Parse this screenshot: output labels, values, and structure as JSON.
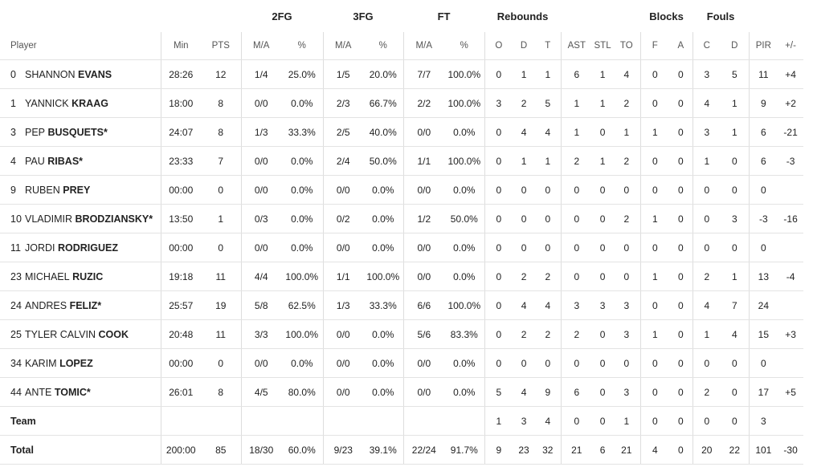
{
  "groups": [
    "2FG",
    "3FG",
    "FT",
    "Rebounds",
    "Blocks",
    "Fouls"
  ],
  "columns": [
    "Player",
    "Min",
    "PTS",
    "M/A",
    "%",
    "M/A",
    "%",
    "M/A",
    "%",
    "O",
    "D",
    "T",
    "AST",
    "STL",
    "TO",
    "F",
    "A",
    "C",
    "D",
    "PIR",
    "+/-"
  ],
  "rows": [
    {
      "number": "0",
      "first": "SHANNON",
      "last": "EVANS",
      "stats": [
        "28:26",
        "12",
        "1/4",
        "25.0%",
        "1/5",
        "20.0%",
        "7/7",
        "100.0%",
        "0",
        "1",
        "1",
        "6",
        "1",
        "4",
        "0",
        "0",
        "3",
        "5",
        "11",
        "+4"
      ]
    },
    {
      "number": "1",
      "first": "YANNICK",
      "last": "KRAAG",
      "stats": [
        "18:00",
        "8",
        "0/0",
        "0.0%",
        "2/3",
        "66.7%",
        "2/2",
        "100.0%",
        "3",
        "2",
        "5",
        "1",
        "1",
        "2",
        "0",
        "0",
        "4",
        "1",
        "9",
        "+2"
      ]
    },
    {
      "number": "3",
      "first": "PEP",
      "last": "BUSQUETS*",
      "stats": [
        "24:07",
        "8",
        "1/3",
        "33.3%",
        "2/5",
        "40.0%",
        "0/0",
        "0.0%",
        "0",
        "4",
        "4",
        "1",
        "0",
        "1",
        "1",
        "0",
        "3",
        "1",
        "6",
        "-21"
      ]
    },
    {
      "number": "4",
      "first": "PAU",
      "last": "RIBAS*",
      "stats": [
        "23:33",
        "7",
        "0/0",
        "0.0%",
        "2/4",
        "50.0%",
        "1/1",
        "100.0%",
        "0",
        "1",
        "1",
        "2",
        "1",
        "2",
        "0",
        "0",
        "1",
        "0",
        "6",
        "-3"
      ]
    },
    {
      "number": "9",
      "first": "RUBEN",
      "last": "PREY",
      "stats": [
        "00:00",
        "0",
        "0/0",
        "0.0%",
        "0/0",
        "0.0%",
        "0/0",
        "0.0%",
        "0",
        "0",
        "0",
        "0",
        "0",
        "0",
        "0",
        "0",
        "0",
        "0",
        "0",
        null
      ]
    },
    {
      "number": "10",
      "first": "VLADIMIR",
      "last": "BRODZIANSKY*",
      "stats": [
        "13:50",
        "1",
        "0/3",
        "0.0%",
        "0/2",
        "0.0%",
        "1/2",
        "50.0%",
        "0",
        "0",
        "0",
        "0",
        "0",
        "2",
        "1",
        "0",
        "0",
        "3",
        "-3",
        "-16"
      ]
    },
    {
      "number": "11",
      "first": "JORDI",
      "last": "RODRIGUEZ",
      "stats": [
        "00:00",
        "0",
        "0/0",
        "0.0%",
        "0/0",
        "0.0%",
        "0/0",
        "0.0%",
        "0",
        "0",
        "0",
        "0",
        "0",
        "0",
        "0",
        "0",
        "0",
        "0",
        "0",
        null
      ]
    },
    {
      "number": "23",
      "first": "MICHAEL",
      "last": "RUZIC",
      "stats": [
        "19:18",
        "11",
        "4/4",
        "100.0%",
        "1/1",
        "100.0%",
        "0/0",
        "0.0%",
        "0",
        "2",
        "2",
        "0",
        "0",
        "0",
        "1",
        "0",
        "2",
        "1",
        "13",
        "-4"
      ]
    },
    {
      "number": "24",
      "first": "ANDRES",
      "last": "FELIZ*",
      "stats": [
        "25:57",
        "19",
        "5/8",
        "62.5%",
        "1/3",
        "33.3%",
        "6/6",
        "100.0%",
        "0",
        "4",
        "4",
        "3",
        "3",
        "3",
        "0",
        "0",
        "4",
        "7",
        "24",
        null
      ]
    },
    {
      "number": "25",
      "first": "TYLER CALVIN",
      "last": "COOK",
      "stats": [
        "20:48",
        "11",
        "3/3",
        "100.0%",
        "0/0",
        "0.0%",
        "5/6",
        "83.3%",
        "0",
        "2",
        "2",
        "2",
        "0",
        "3",
        "1",
        "0",
        "1",
        "4",
        "15",
        "+3"
      ]
    },
    {
      "number": "34",
      "first": "KARIM",
      "last": "LOPEZ",
      "stats": [
        "00:00",
        "0",
        "0/0",
        "0.0%",
        "0/0",
        "0.0%",
        "0/0",
        "0.0%",
        "0",
        "0",
        "0",
        "0",
        "0",
        "0",
        "0",
        "0",
        "0",
        "0",
        "0",
        null
      ]
    },
    {
      "number": "44",
      "first": "ANTE",
      "last": "TOMIC*",
      "stats": [
        "26:01",
        "8",
        "4/5",
        "80.0%",
        "0/0",
        "0.0%",
        "0/0",
        "0.0%",
        "5",
        "4",
        "9",
        "6",
        "0",
        "3",
        "0",
        "0",
        "2",
        "0",
        "17",
        "+5"
      ]
    },
    {
      "name": "Team",
      "stats": [
        null,
        null,
        null,
        null,
        null,
        null,
        null,
        null,
        "1",
        "3",
        "4",
        "0",
        "0",
        "1",
        "0",
        "0",
        "0",
        "0",
        "3",
        null
      ]
    },
    {
      "name": "Total",
      "stats": [
        "200:00",
        "85",
        "18/30",
        "60.0%",
        "9/23",
        "39.1%",
        "22/24",
        "91.7%",
        "9",
        "23",
        "32",
        "21",
        "6",
        "21",
        "4",
        "0",
        "20",
        "22",
        "101",
        "-30"
      ]
    }
  ]
}
